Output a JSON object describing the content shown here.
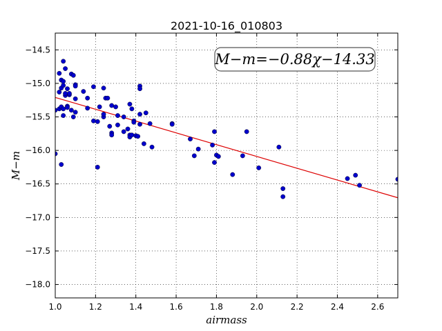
{
  "chart_data": {
    "type": "scatter",
    "title": "2021-10-16_010803",
    "xlabel": "airmass",
    "ylabel": "M−m",
    "xlim": [
      1.0,
      2.7
    ],
    "ylim": [
      -18.2,
      -14.25
    ],
    "y_inverted": false,
    "grid": true,
    "x_ticks": [
      1.0,
      1.2,
      1.4,
      1.6,
      1.8,
      2.0,
      2.2,
      2.4,
      2.6
    ],
    "x_tick_labels": [
      "1.0",
      "1.2",
      "1.4",
      "1.6",
      "1.8",
      "2.0",
      "2.2",
      "2.4",
      "2.6"
    ],
    "y_ticks": [
      -14.5,
      -15.0,
      -15.5,
      -16.0,
      -16.5,
      -17.0,
      -17.5,
      -18.0
    ],
    "y_tick_labels": [
      "−14.5",
      "−15.0",
      "−15.5",
      "−16.0",
      "−16.5",
      "−17.0",
      "−17.5",
      "−18.0"
    ],
    "annotation": "M−m=−0.88χ−14.33",
    "fit": {
      "slope": -0.88,
      "intercept": -14.33,
      "color": "#dd0000"
    },
    "point_color": "#0000cc",
    "points": [
      [
        1.0,
        -16.05
      ],
      [
        1.0,
        -15.4
      ],
      [
        1.02,
        -15.38
      ],
      [
        1.02,
        -14.85
      ],
      [
        1.02,
        -15.13
      ],
      [
        1.03,
        -16.21
      ],
      [
        1.03,
        -15.35
      ],
      [
        1.03,
        -15.07
      ],
      [
        1.03,
        -14.95
      ],
      [
        1.04,
        -15.48
      ],
      [
        1.04,
        -15.38
      ],
      [
        1.04,
        -15.03
      ],
      [
        1.04,
        -14.67
      ],
      [
        1.04,
        -14.97
      ],
      [
        1.05,
        -15.18
      ],
      [
        1.05,
        -14.78
      ],
      [
        1.05,
        -15.15
      ],
      [
        1.06,
        -15.34
      ],
      [
        1.06,
        -15.36
      ],
      [
        1.06,
        -15.08
      ],
      [
        1.07,
        -15.17
      ],
      [
        1.07,
        -15.15
      ],
      [
        1.08,
        -14.86
      ],
      [
        1.08,
        -15.4
      ],
      [
        1.09,
        -14.88
      ],
      [
        1.09,
        -15.5
      ],
      [
        1.1,
        -15.02
      ],
      [
        1.1,
        -15.23
      ],
      [
        1.1,
        -15.04
      ],
      [
        1.1,
        -15.43
      ],
      [
        1.14,
        -15.12
      ],
      [
        1.16,
        -15.37
      ],
      [
        1.16,
        -15.22
      ],
      [
        1.19,
        -15.05
      ],
      [
        1.19,
        -15.56
      ],
      [
        1.21,
        -16.25
      ],
      [
        1.21,
        -15.57
      ],
      [
        1.22,
        -15.35
      ],
      [
        1.24,
        -15.5
      ],
      [
        1.24,
        -15.46
      ],
      [
        1.24,
        -15.07
      ],
      [
        1.25,
        -15.22
      ],
      [
        1.26,
        -15.22
      ],
      [
        1.27,
        -15.64
      ],
      [
        1.28,
        -15.33
      ],
      [
        1.28,
        -15.74
      ],
      [
        1.28,
        -15.77
      ],
      [
        1.3,
        -15.35
      ],
      [
        1.31,
        -15.48
      ],
      [
        1.31,
        -15.62
      ],
      [
        1.34,
        -15.72
      ],
      [
        1.34,
        -15.5
      ],
      [
        1.36,
        -15.68
      ],
      [
        1.37,
        -15.31
      ],
      [
        1.37,
        -15.77
      ],
      [
        1.37,
        -15.8
      ],
      [
        1.38,
        -15.38
      ],
      [
        1.38,
        -15.77
      ],
      [
        1.39,
        -15.56
      ],
      [
        1.39,
        -15.58
      ],
      [
        1.4,
        -15.78
      ],
      [
        1.41,
        -15.79
      ],
      [
        1.42,
        -15.46
      ],
      [
        1.42,
        -15.61
      ],
      [
        1.42,
        -15.04
      ],
      [
        1.42,
        -15.08
      ],
      [
        1.44,
        -15.9
      ],
      [
        1.45,
        -15.44
      ],
      [
        1.47,
        -15.6
      ],
      [
        1.48,
        -15.95
      ],
      [
        1.58,
        -15.6
      ],
      [
        1.58,
        -15.61
      ],
      [
        1.67,
        -15.83
      ],
      [
        1.69,
        -16.08
      ],
      [
        1.71,
        -15.98
      ],
      [
        1.78,
        -15.92
      ],
      [
        1.79,
        -16.18
      ],
      [
        1.79,
        -15.72
      ],
      [
        1.8,
        -16.07
      ],
      [
        1.81,
        -16.09
      ],
      [
        1.88,
        -16.36
      ],
      [
        1.93,
        -16.08
      ],
      [
        1.95,
        -15.72
      ],
      [
        2.01,
        -16.26
      ],
      [
        2.11,
        -15.95
      ],
      [
        2.13,
        -16.57
      ],
      [
        2.13,
        -16.69
      ],
      [
        2.45,
        -16.42
      ],
      [
        2.49,
        -16.37
      ],
      [
        2.51,
        -16.52
      ],
      [
        2.7,
        -16.43
      ]
    ]
  }
}
